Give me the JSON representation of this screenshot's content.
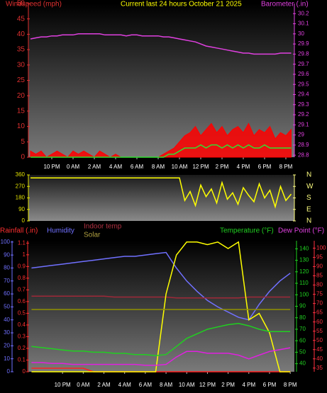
{
  "chart_data": [
    {
      "type": "line",
      "title": "Current last 24 hours October 21 2025",
      "x": [
        -4,
        -3.5,
        -3,
        -2.5,
        -2,
        -1.5,
        -1,
        -0.5,
        0,
        0.5,
        1,
        1.5,
        2,
        2.5,
        3,
        3.5,
        4,
        4.5,
        5,
        5.5,
        6,
        6.5,
        7,
        7.5,
        8,
        8.5,
        9,
        9.5,
        10,
        10.5,
        11,
        11.5,
        12,
        12.5,
        13,
        13.5,
        14,
        14.5,
        15,
        15.5,
        16,
        16.5,
        17,
        17.5,
        18,
        18.5,
        19,
        19.5,
        20,
        20.5
      ],
      "xlim": [
        -4.2,
        20.8
      ],
      "xticks": [
        {
          "value": -2,
          "label": "10 PM"
        },
        {
          "value": 0,
          "label": "0 AM"
        },
        {
          "value": 2,
          "label": "2 AM"
        },
        {
          "value": 4,
          "label": "4 AM"
        },
        {
          "value": 6,
          "label": "6 AM"
        },
        {
          "value": 8,
          "label": "8 AM"
        },
        {
          "value": 10,
          "label": "10 AM"
        },
        {
          "value": 12,
          "label": "12 PM"
        },
        {
          "value": 14,
          "label": "2 PM"
        },
        {
          "value": 16,
          "label": "4 PM"
        },
        {
          "value": 18,
          "label": "6 PM"
        },
        {
          "value": 20,
          "label": "8 PM"
        }
      ],
      "ylim": [
        0,
        50
      ],
      "yticks": [
        0,
        5,
        10,
        15,
        20,
        25,
        30,
        35,
        40,
        45,
        50
      ],
      "y2lim": [
        28.78,
        30.3
      ],
      "y2ticks": [
        28.8,
        28.9,
        29,
        29.1,
        29.2,
        29.3,
        29.4,
        29.5,
        29.6,
        29.7,
        29.8,
        29.9,
        30,
        30.1,
        30.2
      ],
      "series": [
        {
          "name": "Windspeed (mph)",
          "color": "#ff0000",
          "area": true,
          "axis": "y",
          "values": [
            2,
            1,
            2,
            0,
            1,
            2,
            1,
            0,
            2,
            1,
            2,
            1,
            0,
            2,
            1,
            0,
            1,
            0,
            0,
            0,
            0,
            0,
            0,
            0,
            0,
            1,
            2,
            3,
            5,
            7,
            8,
            10,
            7,
            9,
            11,
            8,
            10,
            7,
            9,
            10,
            8,
            11,
            7,
            9,
            8,
            10,
            6,
            8,
            7,
            9
          ]
        },
        {
          "color": "#30e030",
          "axis": "y",
          "values": [
            0,
            0,
            0,
            0,
            0,
            0,
            0,
            0,
            0,
            0,
            0,
            0,
            0,
            0,
            0,
            0,
            0,
            0,
            0,
            0,
            0,
            0,
            0,
            0,
            0,
            0,
            1,
            1,
            2,
            3,
            3,
            3,
            4,
            3,
            4,
            4,
            3,
            4,
            3,
            4,
            3,
            4,
            3,
            3,
            4,
            3,
            3,
            3,
            3,
            3
          ]
        },
        {
          "name": "Barometer (.in)",
          "color": "#e040e0",
          "axis": "y2",
          "values": [
            29.95,
            29.96,
            29.97,
            29.97,
            29.98,
            29.98,
            29.99,
            29.99,
            29.99,
            30,
            30,
            30,
            30,
            30,
            29.99,
            29.99,
            29.99,
            29.99,
            29.98,
            29.99,
            29.99,
            29.98,
            29.98,
            29.98,
            29.98,
            29.97,
            29.97,
            29.96,
            29.95,
            29.94,
            29.93,
            29.92,
            29.9,
            29.88,
            29.87,
            29.86,
            29.85,
            29.84,
            29.83,
            29.82,
            29.81,
            29.81,
            29.8,
            29.8,
            29.8,
            29.8,
            29.8,
            29.81,
            29.81,
            29.81
          ]
        }
      ]
    },
    {
      "type": "line",
      "x": [
        -4,
        -3.5,
        -3,
        -2.5,
        -2,
        -1.5,
        -1,
        -0.5,
        0,
        0.5,
        1,
        1.5,
        2,
        2.5,
        3,
        3.5,
        4,
        4.5,
        5,
        5.5,
        6,
        6.5,
        7,
        7.5,
        8,
        8.5,
        9,
        9.5,
        10,
        10.5,
        11,
        11.5,
        12,
        12.5,
        13,
        13.5,
        14,
        14.5,
        15,
        15.5,
        16,
        16.5,
        17,
        17.5,
        18,
        18.5,
        19,
        19.5,
        20,
        20.5
      ],
      "xlim": [
        -4.2,
        20.8
      ],
      "ylim": [
        0,
        360
      ],
      "yticks": [
        0,
        90,
        180,
        270,
        360
      ],
      "y2lim": [
        0,
        360
      ],
      "y2ticks": [
        {
          "value": 360,
          "label": "N"
        },
        {
          "value": 270,
          "label": "W"
        },
        {
          "value": 180,
          "label": "S"
        },
        {
          "value": 90,
          "label": "E"
        },
        {
          "value": 0,
          "label": "N"
        }
      ],
      "series": [
        {
          "color": "#ffff00",
          "axis": "y",
          "values": [
            337,
            337,
            337,
            337,
            337,
            337,
            337,
            337,
            337,
            337,
            337,
            337,
            337,
            337,
            337,
            337,
            337,
            337,
            337,
            337,
            337,
            337,
            337,
            337,
            337,
            337,
            337,
            337,
            337,
            160,
            230,
            120,
            280,
            190,
            250,
            140,
            300,
            170,
            220,
            130,
            260,
            200,
            150,
            290,
            180,
            240,
            110,
            270,
            160,
            210
          ]
        }
      ]
    },
    {
      "type": "line",
      "x": [
        -5,
        -4,
        -3,
        -2,
        -1,
        0,
        1,
        2,
        3,
        4,
        5,
        6,
        7,
        8,
        9,
        10,
        11,
        12,
        13,
        14,
        15,
        16,
        17,
        18,
        19,
        20
      ],
      "xlim": [
        -5.3,
        20.4
      ],
      "xticks": [
        {
          "value": -2,
          "label": "10 PM"
        },
        {
          "value": 0,
          "label": "0 AM"
        },
        {
          "value": 2,
          "label": "2 AM"
        },
        {
          "value": 4,
          "label": "4 AM"
        },
        {
          "value": 6,
          "label": "6 AM"
        },
        {
          "value": 8,
          "label": "8 AM"
        },
        {
          "value": 10,
          "label": "10 AM"
        },
        {
          "value": 12,
          "label": "12 PM"
        },
        {
          "value": 14,
          "label": "2 PM"
        },
        {
          "value": 16,
          "label": "4 PM"
        },
        {
          "value": 18,
          "label": "6 PM"
        },
        {
          "value": 20,
          "label": "8 PM"
        }
      ],
      "ylim": [
        0,
        1.12
      ],
      "yticks": [
        0,
        0.1,
        0.2,
        0.3,
        0.4,
        0.5,
        0.6,
        0.7,
        0.8,
        0.9,
        1,
        1.1
      ],
      "y2lim": [
        33,
        147
      ],
      "y2ticks": [
        40,
        50,
        60,
        70,
        80,
        90,
        100,
        110,
        120,
        130,
        140
      ],
      "y3lim": [
        0,
        101
      ],
      "y3ticks": [
        0,
        10,
        20,
        30,
        40,
        50,
        60,
        70,
        80,
        90,
        100
      ],
      "y4lim": [
        33,
        104
      ],
      "y4ticks": [
        35,
        40,
        45,
        50,
        55,
        60,
        65,
        70,
        75,
        80,
        85,
        90,
        95,
        100
      ],
      "series": [
        {
          "name": "Rainfall (.in)",
          "color": "#ff2020",
          "axis": "y",
          "values": [
            0.03,
            0.03,
            0.03,
            0.03,
            0.03,
            0.03,
            0,
            0,
            0,
            0,
            0,
            0,
            0,
            0,
            0,
            0,
            0,
            0,
            0,
            0,
            0,
            0,
            0,
            0,
            0,
            0
          ]
        },
        {
          "name": "Humidity",
          "color": "#7070ff",
          "axis": "y3",
          "values": [
            80,
            81,
            82,
            83,
            84,
            85,
            86,
            87,
            88,
            89,
            89,
            90,
            91,
            92,
            80,
            70,
            62,
            55,
            50,
            46,
            42,
            40,
            52,
            62,
            70,
            76
          ]
        },
        {
          "name": "Indoor temp",
          "color": "#a02838",
          "axis": "y4",
          "values": [
            74,
            74,
            74,
            74,
            74,
            74,
            74,
            74,
            73.5,
            73.5,
            73.5,
            73.5,
            73.5,
            73.5,
            73,
            73,
            73,
            73,
            73,
            73,
            73,
            73.5,
            73.5,
            73.5,
            73.5,
            73.5
          ]
        },
        {
          "name": "Solar",
          "color": "#ffff00",
          "axis": "y3",
          "values": [
            0,
            0,
            0,
            0,
            0,
            0,
            0,
            0,
            0,
            0,
            0,
            0,
            0,
            60,
            90,
            100,
            100,
            98,
            100,
            95,
            100,
            40,
            45,
            30,
            0,
            0
          ]
        },
        {
          "color": "#909000",
          "axis": "y3",
          "values": [
            48,
            48,
            48,
            48,
            48,
            48,
            48,
            48,
            48,
            48,
            48,
            48,
            48,
            48,
            48,
            48,
            48,
            48,
            48,
            48,
            48,
            48,
            48,
            48,
            48,
            48
          ]
        },
        {
          "name": "Temperature (°F)",
          "color": "#20d020",
          "axis": "y2",
          "values": [
            55,
            54,
            53,
            52,
            51,
            51,
            50,
            50,
            49,
            49,
            48,
            48,
            47,
            48,
            55,
            62,
            66,
            70,
            72,
            74,
            75,
            73,
            70,
            68,
            68,
            68
          ]
        },
        {
          "name": "Dew Point (°F)",
          "color": "#e020e0",
          "axis": "y4",
          "values": [
            38,
            38,
            37.5,
            37.5,
            37,
            37,
            37,
            37,
            37,
            37,
            37,
            36.5,
            36.5,
            37,
            41,
            44,
            44,
            43,
            43,
            43,
            42,
            40,
            42,
            44,
            45,
            46
          ]
        }
      ]
    }
  ]
}
